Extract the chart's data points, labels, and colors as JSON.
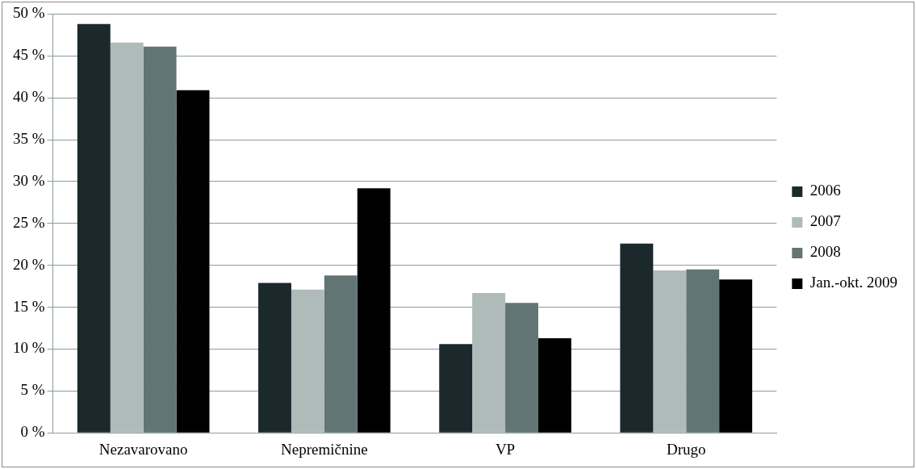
{
  "chart_data": {
    "type": "bar",
    "categories": [
      "Nezavarovano",
      "Nepremičnine",
      "VP",
      "Drugo"
    ],
    "series": [
      {
        "name": "2006",
        "color": "#1b292d",
        "values": [
          48.8,
          17.9,
          10.6,
          22.6
        ]
      },
      {
        "name": "2007",
        "color": "#afbbb8",
        "values": [
          46.6,
          17.1,
          16.7,
          19.4
        ]
      },
      {
        "name": "2008",
        "color": "#627473",
        "values": [
          46.1,
          18.8,
          15.5,
          19.5
        ]
      },
      {
        "name": "Jan.-okt. 2009",
        "color": "#000000",
        "values": [
          40.9,
          29.2,
          11.3,
          18.3
        ]
      }
    ],
    "ylim": [
      0,
      50
    ],
    "yticks": [
      {
        "value": 0,
        "label": "0 %"
      },
      {
        "value": 5,
        "label": "5 %"
      },
      {
        "value": 10,
        "label": "10 %"
      },
      {
        "value": 15,
        "label": "15 %"
      },
      {
        "value": 20,
        "label": "20 %"
      },
      {
        "value": 25,
        "label": "25 %"
      },
      {
        "value": 30,
        "label": "30 %"
      },
      {
        "value": 35,
        "label": "35 %"
      },
      {
        "value": 40,
        "label": "40 %"
      },
      {
        "value": 45,
        "label": "45 %"
      },
      {
        "value": 50,
        "label": "50 %"
      }
    ],
    "grid": "y",
    "legend": "right"
  }
}
